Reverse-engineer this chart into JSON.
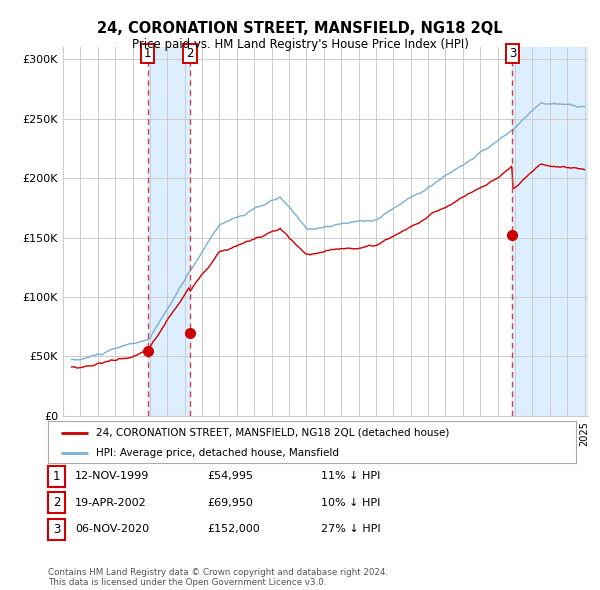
{
  "title": "24, CORONATION STREET, MANSFIELD, NG18 2QL",
  "subtitle": "Price paid vs. HM Land Registry's House Price Index (HPI)",
  "legend_label_red": "24, CORONATION STREET, MANSFIELD, NG18 2QL (detached house)",
  "legend_label_blue": "HPI: Average price, detached house, Mansfield",
  "footer": "Contains HM Land Registry data © Crown copyright and database right 2024.\nThis data is licensed under the Open Government Licence v3.0.",
  "transactions": [
    {
      "num": 1,
      "date": "12-NOV-1999",
      "price": 54995,
      "pct": "11%",
      "dir": "↓",
      "year_x": 1999.87
    },
    {
      "num": 2,
      "date": "19-APR-2002",
      "price": 69950,
      "pct": "10%",
      "dir": "↓",
      "year_x": 2002.3
    },
    {
      "num": 3,
      "date": "06-NOV-2020",
      "price": 152000,
      "pct": "27%",
      "dir": "↓",
      "year_x": 2020.85
    }
  ],
  "sale_points": [
    {
      "year": 1999.87,
      "price": 54995
    },
    {
      "year": 2002.3,
      "price": 69950
    },
    {
      "year": 2020.85,
      "price": 152000
    }
  ],
  "highlight_ranges": [
    [
      1999.87,
      2002.3
    ],
    [
      2020.85,
      2025.2
    ]
  ],
  "ylim": [
    0,
    310000
  ],
  "xlim_start": 1995.5,
  "xlim_end": 2025.2,
  "background_color": "#ffffff",
  "plot_bg_color": "#ffffff",
  "grid_color": "#cccccc",
  "red_color": "#cc0000",
  "blue_color": "#7aafd4",
  "highlight_color": "#ddeeff",
  "dashed_color": "#cc4444"
}
